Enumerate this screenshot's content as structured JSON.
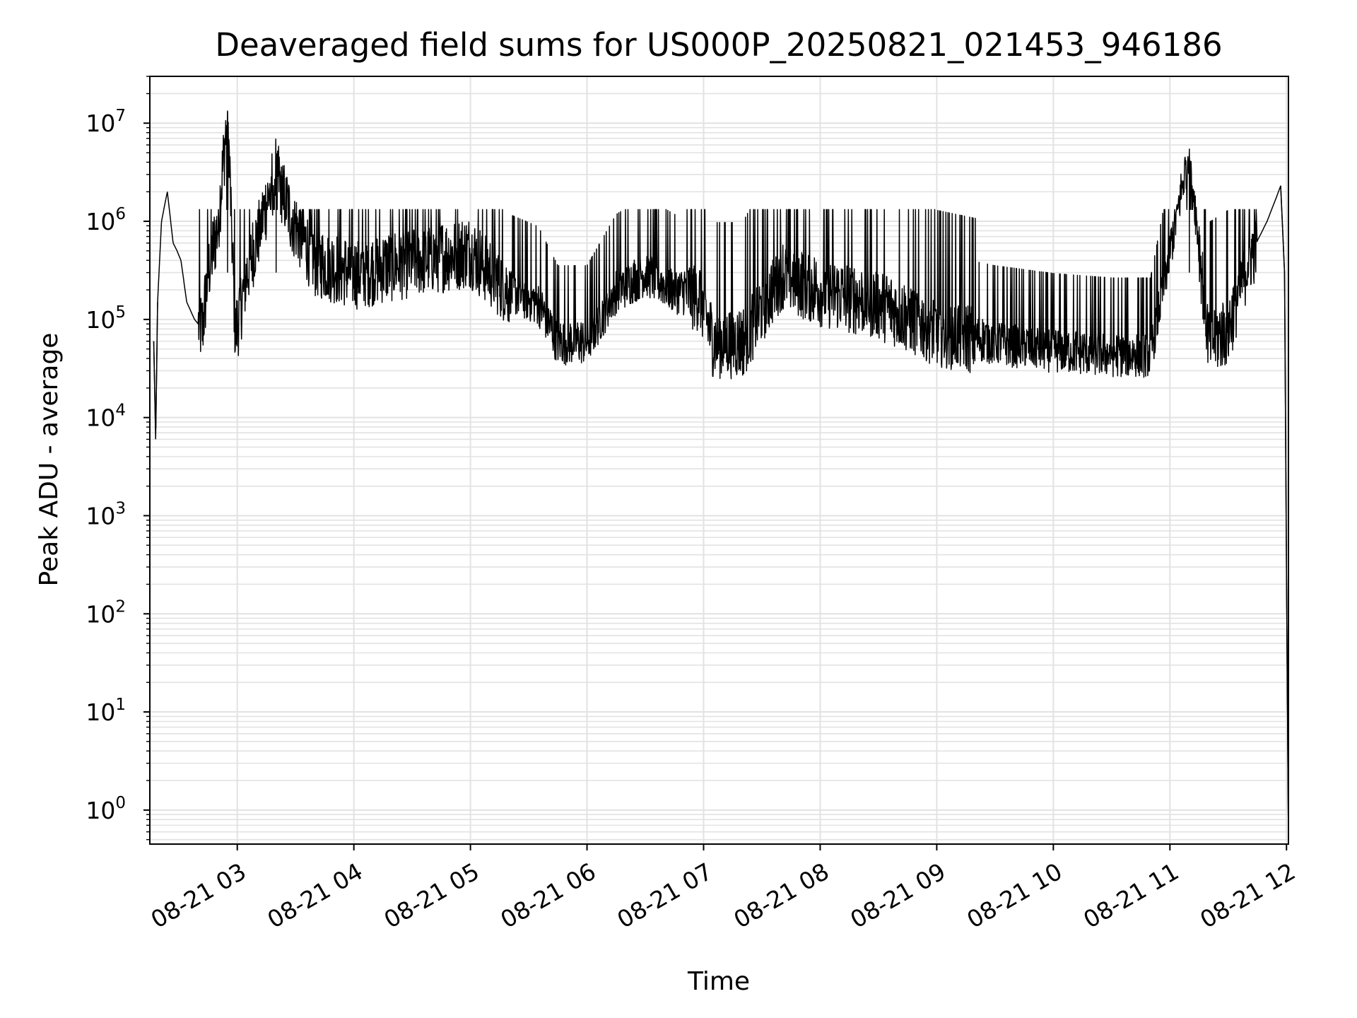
{
  "chart_data": {
    "type": "line",
    "title": "Deaveraged field sums for US000P_20250821_021453_946186",
    "xlabel": "Time",
    "ylabel": "Peak ADU - average",
    "y_scale": "log",
    "ylim": [
      0.45,
      30000000
    ],
    "xlim": [
      "2025-08-21 02:15",
      "2025-08-21 12:01"
    ],
    "grid": "major and minor, light gray",
    "legend": "none",
    "line_color": "#000000",
    "x_ticks": [
      "08-21 03",
      "08-21 04",
      "08-21 05",
      "08-21 06",
      "08-21 07",
      "08-21 08",
      "08-21 09",
      "08-21 10",
      "08-21 11",
      "08-21 12"
    ],
    "x_tick_values": [
      "2025-08-21 03:00",
      "2025-08-21 04:00",
      "2025-08-21 05:00",
      "2025-08-21 06:00",
      "2025-08-21 07:00",
      "2025-08-21 08:00",
      "2025-08-21 09:00",
      "2025-08-21 10:00",
      "2025-08-21 11:00",
      "2025-08-21 12:00"
    ],
    "y_ticks": [
      {
        "value": 1,
        "base": "10",
        "exp": "0"
      },
      {
        "value": 10,
        "base": "10",
        "exp": "1"
      },
      {
        "value": 100,
        "base": "10",
        "exp": "2"
      },
      {
        "value": 1000,
        "base": "10",
        "exp": "3"
      },
      {
        "value": 10000,
        "base": "10",
        "exp": "4"
      },
      {
        "value": 100000,
        "base": "10",
        "exp": "5"
      },
      {
        "value": 1000000,
        "base": "10",
        "exp": "6"
      },
      {
        "value": 10000000,
        "base": "10",
        "exp": "7"
      }
    ],
    "series": [
      {
        "x": [
          "2025-08-21 02:17",
          "2025-08-21 02:18",
          "2025-08-21 02:19",
          "2025-08-21 02:21",
          "2025-08-21 02:24",
          "2025-08-21 02:27",
          "2025-08-21 02:29",
          "2025-08-21 02:31",
          "2025-08-21 02:34",
          "2025-08-21 02:38",
          "2025-08-21 02:42",
          "2025-08-21 02:45",
          "2025-08-21 02:50",
          "2025-08-21 02:55",
          "2025-08-21 02:57",
          "2025-08-21 02:59",
          "2025-08-21 03:05",
          "2025-08-21 03:20",
          "2025-08-21 03:27",
          "2025-08-21 03:40",
          "2025-08-21 04:00",
          "2025-08-21 04:30",
          "2025-08-21 05:00",
          "2025-08-21 05:20",
          "2025-08-21 05:35",
          "2025-08-21 05:45",
          "2025-08-21 06:00",
          "2025-08-21 06:15",
          "2025-08-21 06:30",
          "2025-08-21 06:45",
          "2025-08-21 06:58",
          "2025-08-21 07:05",
          "2025-08-21 07:20",
          "2025-08-21 07:40",
          "2025-08-21 08:00",
          "2025-08-21 08:30",
          "2025-08-21 09:00",
          "2025-08-21 09:30",
          "2025-08-21 10:00",
          "2025-08-21 10:30",
          "2025-08-21 10:50",
          "2025-08-21 11:10",
          "2025-08-21 11:20",
          "2025-08-21 11:30",
          "2025-08-21 11:40",
          "2025-08-21 11:50",
          "2025-08-21 11:55",
          "2025-08-21 11:57",
          "2025-08-21 11:59",
          "2025-08-21 12:00",
          "2025-08-21 12:01"
        ],
        "values": [
          60000,
          6000,
          150000,
          1000000,
          2000000,
          600000,
          500000,
          400000,
          150000,
          100000,
          80000,
          300000,
          900000,
          13000000,
          1000000,
          70000,
          300000,
          3500000,
          1200000,
          400000,
          300000,
          400000,
          500000,
          200000,
          150000,
          60000,
          60000,
          200000,
          300000,
          200000,
          180000,
          60000,
          60000,
          300000,
          200000,
          150000,
          80000,
          60000,
          50000,
          45000,
          45000,
          5500000,
          60000,
          80000,
          400000,
          1000000,
          1800000,
          2300000,
          300000,
          250,
          0.45
        ]
      }
    ]
  }
}
